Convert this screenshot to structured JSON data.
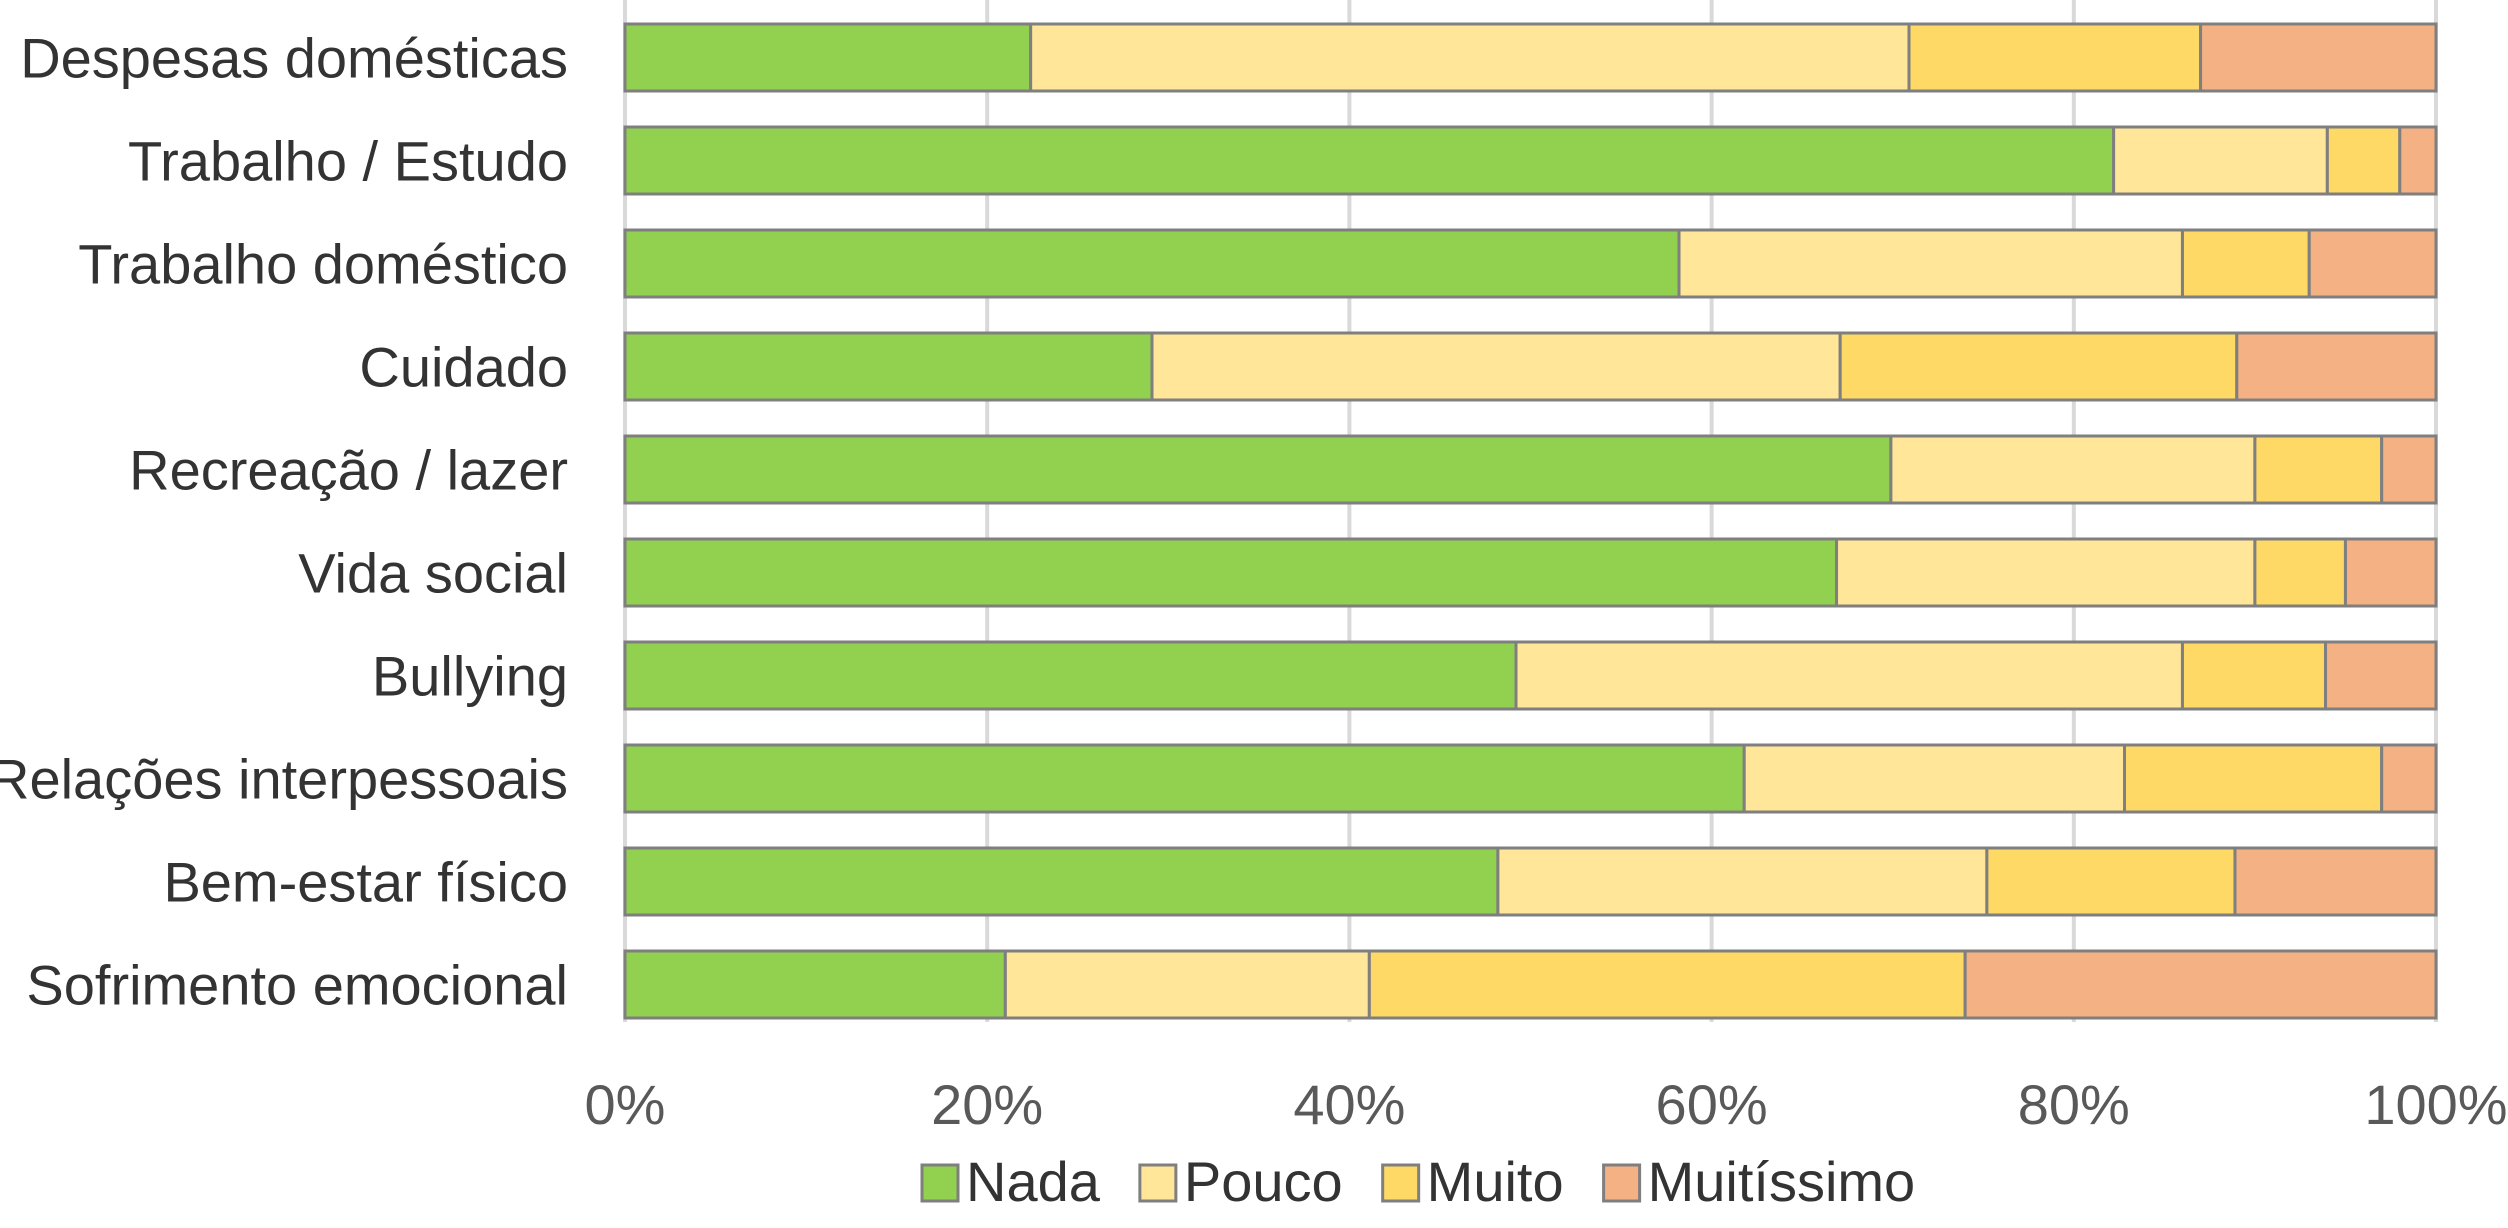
{
  "chart_data": {
    "type": "bar",
    "orientation": "horizontal",
    "stacked": "percent",
    "categories": [
      "Despesas domésticas",
      "Trabalho / Estudo",
      "Trabalho doméstico",
      "Cuidado",
      "Recreação / lazer",
      "Vida social",
      "Bullying",
      "Relações interpessoais",
      "Bem-estar físico",
      "Sofrimento emocional"
    ],
    "series": [
      {
        "name": "Nada",
        "color": "#92d050",
        "values": [
          22.4,
          82.2,
          58.2,
          29.1,
          69.9,
          66.9,
          49.2,
          61.8,
          48.2,
          21.0
        ]
      },
      {
        "name": "Pouco",
        "color": "#ffe699",
        "values": [
          48.5,
          11.8,
          27.8,
          38.0,
          20.1,
          23.1,
          36.8,
          21.0,
          27.0,
          20.1
        ]
      },
      {
        "name": "Muito",
        "color": "#ffd966",
        "values": [
          16.1,
          4.0,
          7.0,
          21.9,
          7.0,
          5.0,
          7.9,
          14.2,
          13.7,
          32.9
        ]
      },
      {
        "name": "Muitíssimo",
        "color": "#f4b183",
        "values": [
          13.0,
          2.0,
          7.0,
          11.0,
          3.0,
          5.0,
          6.1,
          3.0,
          11.1,
          26.0
        ]
      }
    ],
    "xlim": [
      0,
      100
    ],
    "xticks": [
      "0%",
      "20%",
      "40%",
      "60%",
      "80%",
      "100%"
    ],
    "grid": true,
    "legend_position": "bottom",
    "title": "",
    "xlabel": "",
    "ylabel": ""
  }
}
